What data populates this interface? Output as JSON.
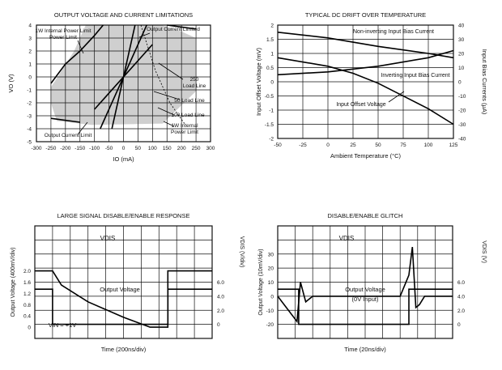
{
  "chart_data": [
    {
      "type": "area",
      "title": "OUTPUT VOLTAGE AND CURRENT LIMITATIONS",
      "xlabel": "IO (mA)",
      "ylabel": "VO (V)",
      "xlim": [
        -300,
        300
      ],
      "ylim": [
        -5,
        4
      ],
      "xticks": [
        "-300",
        "-250",
        "-200",
        "-150",
        "-100",
        "-50",
        "0",
        "50",
        "100",
        "150",
        "200",
        "250",
        "300"
      ],
      "yticks": [
        "4",
        "3",
        "2",
        "1",
        "0",
        "-1",
        "-2",
        "-3",
        "-4",
        "-5"
      ],
      "grid": true,
      "safe_region": {
        "x": [
          -130,
          -100,
          -75,
          -50,
          130,
          200,
          250,
          250,
          135,
          -110,
          -230,
          -250,
          -250,
          -210,
          -170,
          -130
        ],
        "y": [
          4,
          4,
          4,
          4,
          4,
          3.5,
          3.0,
          -1.1,
          -3.6,
          -3.7,
          -3.4,
          -2.0,
          -0.8,
          0.6,
          2.0,
          4
        ]
      },
      "series": [
        {
          "name": "Output Current Limited",
          "x": [
            -250,
            -150,
            150,
            250
          ],
          "y": [
            -3.2,
            -3.5,
            4.0,
            3.7
          ]
        },
        {
          "name": "1W Internal Power Limit",
          "x": [
            -250,
            -200,
            -150,
            -100,
            -70
          ],
          "y": [
            -0.5,
            1.0,
            2.0,
            3.2,
            4.0
          ]
        },
        {
          "name": "250 Load Line",
          "x": [
            -100,
            100
          ],
          "y": [
            -2.5,
            2.5
          ]
        },
        {
          "name": "50 Load Line",
          "x": [
            -80,
            80
          ],
          "y": [
            -4,
            4
          ]
        },
        {
          "name": "100 Load Line",
          "x": [
            -40,
            40
          ],
          "y": [
            -4,
            4
          ]
        }
      ],
      "annotations": [
        "1W Internal Power Limit",
        "Output Current Limited",
        "250 Load Line",
        "50 Load Line",
        "100 Load Line",
        "1W Internal Power Limit",
        "Output Current Limit"
      ]
    },
    {
      "type": "line",
      "title": "TYPICAL DC DRIFT OVER TEMPERATURE",
      "xlabel": "Ambient Temperature (°C)",
      "ylabel": "Input Offset Voltage (mV)",
      "y2label": "Input Bias Currents (μA)",
      "xlim": [
        -50,
        125
      ],
      "ylim": [
        -2,
        2
      ],
      "y2lim": [
        -40,
        40
      ],
      "xticks": [
        "-50",
        "-25",
        "0",
        "25",
        "50",
        "75",
        "100",
        "125"
      ],
      "yticks": [
        "2",
        "1.5",
        "1",
        "0.5",
        "0",
        "-0.5",
        "-1",
        "-1.5",
        "-2"
      ],
      "y2ticks": [
        "40",
        "30",
        "20",
        "10",
        "0",
        "-10",
        "-20",
        "-30",
        "-40"
      ],
      "grid": true,
      "series": [
        {
          "name": "Non-inverting Input Bias Current",
          "axis": "y2",
          "x": [
            -50,
            0,
            50,
            100,
            125
          ],
          "y": [
            35,
            31,
            25,
            20,
            17
          ]
        },
        {
          "name": "Inverting Input Bias Current",
          "axis": "y2",
          "x": [
            -50,
            0,
            50,
            100,
            125
          ],
          "y": [
            5,
            7,
            11,
            17,
            22
          ]
        },
        {
          "name": "Input Offset Voltage",
          "axis": "y",
          "x": [
            -50,
            0,
            25,
            50,
            100,
            125
          ],
          "y": [
            0.85,
            0.55,
            0.3,
            -0.05,
            -0.95,
            -1.5
          ]
        }
      ],
      "annotations": [
        "Non-inverting Input Bias Current",
        "Inverting Input Bias Current",
        "Input Offset Voltage"
      ]
    },
    {
      "type": "line",
      "title": "LARGE SIGNAL DISABLE/ENABLE RESPONSE",
      "xlabel": "Time (200ns/div)",
      "ylabel": "Output Voltage (400mV/div)",
      "y2label": "VDIS (V/div)",
      "xlim": [
        0,
        10
      ],
      "ylim": [
        -0.4,
        3.6
      ],
      "yticks": [
        "2.0",
        "1.6",
        "1.2",
        "0.8",
        "0.4",
        "0"
      ],
      "y2ticks": [
        "6.0",
        "4.0",
        "2.0",
        "0"
      ],
      "grid": true,
      "series": [
        {
          "name": "VDIS",
          "axis": "y2",
          "x": [
            0,
            1,
            1,
            7.5,
            7.5,
            10
          ],
          "y": [
            5,
            5,
            0,
            0,
            5,
            5
          ]
        },
        {
          "name": "Output Voltage",
          "axis": "y",
          "x": [
            0,
            1,
            1.5,
            3,
            5,
            6.5,
            7.5,
            7.5,
            10
          ],
          "y": [
            2.0,
            2.0,
            1.5,
            0.9,
            0.35,
            0,
            0,
            2.0,
            2.0
          ]
        }
      ],
      "annotations": [
        "VDIS",
        "Output Voltage",
        "VIN = +1V"
      ]
    },
    {
      "type": "line",
      "title": "DISABLE/ENABLE GLITCH",
      "xlabel": "Time (20ns/div)",
      "ylabel": "Output Voltage (10mV/div)",
      "y2label": "VDIS (V)",
      "xlim": [
        0,
        10
      ],
      "ylim": [
        -30,
        50
      ],
      "yticks": [
        "30",
        "20",
        "10",
        "0",
        "-10",
        "-20"
      ],
      "y2ticks": [
        "6.0",
        "4.0",
        "2.0",
        "0"
      ],
      "grid": true,
      "series": [
        {
          "name": "VDIS",
          "axis": "y2",
          "x": [
            0,
            1.2,
            1.2,
            7.5,
            7.5,
            10
          ],
          "y": [
            5,
            5,
            0,
            0,
            5,
            5
          ]
        },
        {
          "name": "Output Voltage",
          "axis": "y",
          "x": [
            0,
            1.1,
            1.3,
            1.6,
            2,
            7,
            7.5,
            7.7,
            7.9,
            8.1,
            8.4,
            10
          ],
          "y": [
            0,
            -18,
            10,
            -4,
            0,
            0,
            15,
            35,
            -8,
            -6,
            0,
            0
          ]
        }
      ],
      "annotations": [
        "VDIS",
        "Output Voltage",
        "(0V Input)"
      ]
    }
  ]
}
